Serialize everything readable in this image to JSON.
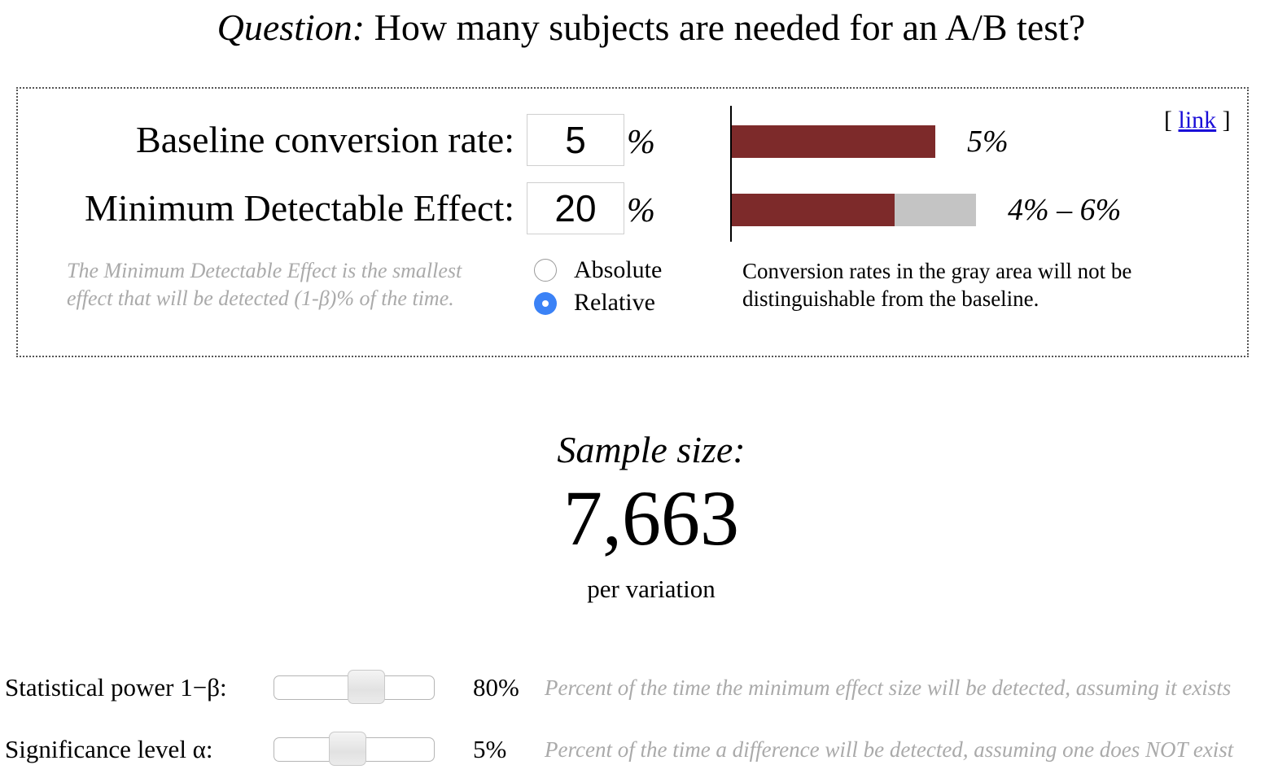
{
  "title": {
    "question_prefix": "Question:",
    "text": " How many subjects are needed for an A/B test?"
  },
  "calculator": {
    "baseline": {
      "label": "Baseline conversion rate:",
      "value": "5",
      "unit": "%"
    },
    "mde": {
      "label": "Minimum Detectable Effect:",
      "value": "20",
      "unit": "%"
    },
    "link": {
      "open": "[",
      "label": "link",
      "close": "]"
    },
    "mde_note_line1": "The Minimum Detectable Effect is the smallest",
    "mde_note_line2": "effect that will be detected (1-β)% of the time.",
    "mode": {
      "options": [
        "Absolute",
        "Relative"
      ],
      "selected": "Relative"
    },
    "visual": {
      "baseline_rate": 5,
      "range_low": 4,
      "range_high": 6,
      "baseline_label": "5%",
      "range_label": "4% – 6%",
      "colors": {
        "baseline": "#7d2a2a",
        "indistinguishable": "#c4c4c4"
      }
    },
    "gray_note_line1": "Conversion rates in the gray area will not be",
    "gray_note_line2": "distinguishable from the baseline."
  },
  "result": {
    "label": "Sample size:",
    "value": "7,663",
    "per": "per variation"
  },
  "sliders": {
    "power": {
      "label": "Statistical power 1−β:",
      "value_label": "80%",
      "level": 0.6,
      "description": "Percent of the time the minimum effect size will be detected, assuming it exists"
    },
    "significance": {
      "label": "Significance level α:",
      "value_label": "5%",
      "level": 0.45,
      "description": "Percent of the time a difference will be detected, assuming one does NOT exist"
    }
  }
}
